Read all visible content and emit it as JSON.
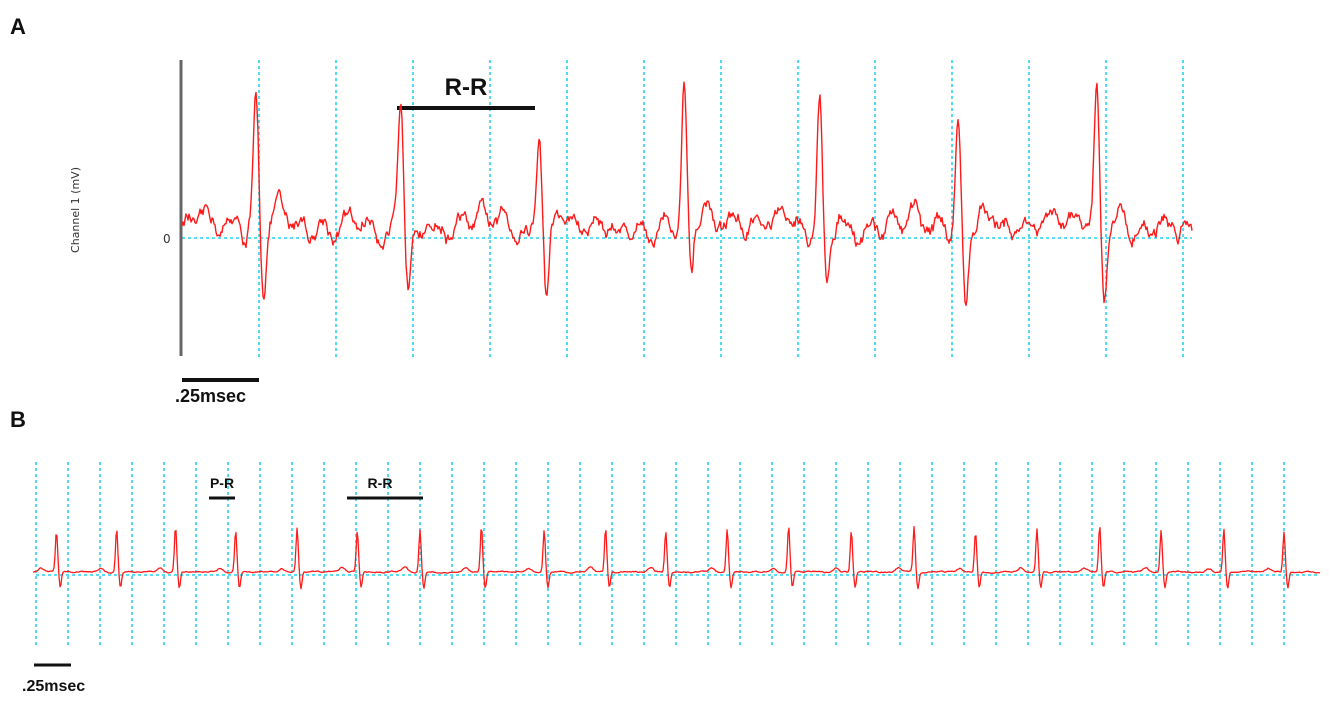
{
  "figure": {
    "panels": [
      {
        "letter": "A",
        "ylabel": "Channel 1 (mV)",
        "zero_label": "0",
        "scalebar_label": ".25msec",
        "interval_label": "R-R"
      },
      {
        "letter": "B",
        "scalebar_label": ".25msec",
        "pr_label": "P-R",
        "rr_label": "R-R"
      }
    ]
  },
  "colors": {
    "trace": "#ff1a1a",
    "grid": "#22d4ee",
    "axis": "#666666",
    "text": "#111111"
  },
  "chart_data": [
    {
      "type": "line",
      "panel": "A",
      "ylabel": "Channel 1 (mV)",
      "ytick_labels": [
        "0"
      ],
      "x_unit": "msec",
      "scale_bar_msec": 0.25,
      "grid_interval_msec": 0.25,
      "beat_times_msec": [
        0.24,
        0.71,
        1.16,
        1.63,
        2.07,
        2.52,
        2.97
      ],
      "r_amplitude_rel": [
        0.88,
        0.85,
        0.76,
        1.0,
        0.95,
        0.84,
        1.07
      ],
      "s_amplitude_rel": [
        -0.52,
        -0.52,
        -0.62,
        -0.49,
        -0.58,
        -0.62,
        -0.55
      ],
      "baseline_rel": 0.1,
      "annotation": {
        "label": "R-R",
        "from_beat": 2,
        "to_beat": 3
      },
      "grid": true
    },
    {
      "type": "line",
      "panel": "B",
      "x_unit": "msec",
      "scale_bar_msec": 0.25,
      "grid_interval_msec": 0.25,
      "beat_times_msec": [
        0.16,
        0.63,
        1.09,
        1.56,
        2.04,
        2.51,
        3.0,
        3.48,
        3.97,
        4.45,
        4.92,
        5.4,
        5.88,
        6.37,
        6.86,
        7.34,
        7.82,
        8.31,
        8.79,
        9.28,
        9.75
      ],
      "annotations": [
        {
          "label": "P-R",
          "from_msec": 1.4,
          "to_msec": 1.56
        },
        {
          "label": "R-R",
          "from_msec": 2.51,
          "to_msec": 3.08
        }
      ],
      "grid": true
    }
  ]
}
